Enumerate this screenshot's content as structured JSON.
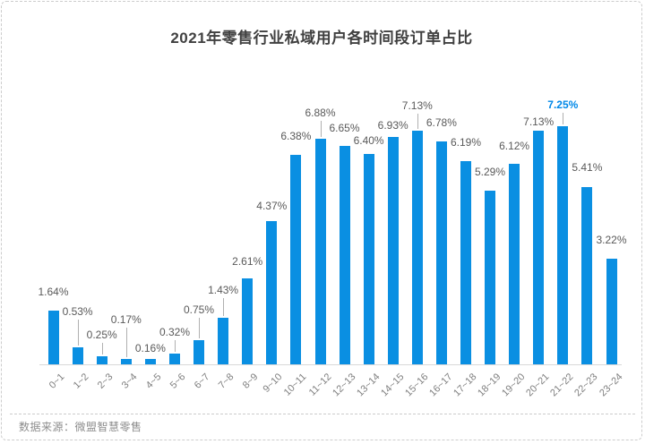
{
  "title": "2021年零售行业私域用户各时间段订单占比",
  "source": "数据来源：微盟智慧零售",
  "colors": {
    "bar": "#0a8fe2",
    "value_label": "#595959",
    "highlight_label": "#0088e8",
    "axis": "#d9d9d9",
    "tick_label": "#7f7f7f",
    "leader": "#b0b0b0"
  },
  "chart_data": {
    "type": "bar",
    "title": "2021年零售行业私域用户各时间段订单占比",
    "categories": [
      "0~1",
      "1~2",
      "2~3",
      "3~4",
      "4~5",
      "5~6",
      "6~7",
      "7~8",
      "8~9",
      "9~10",
      "10~11",
      "11~12",
      "12~13",
      "13~14",
      "14~15",
      "15~16",
      "16~17",
      "17~18",
      "18~19",
      "19~20",
      "20~21",
      "21~22",
      "22~23",
      "23~24"
    ],
    "values": [
      1.64,
      0.53,
      0.25,
      0.17,
      0.16,
      0.32,
      0.75,
      1.43,
      2.61,
      4.37,
      6.38,
      6.88,
      6.65,
      6.4,
      6.93,
      7.13,
      6.78,
      6.19,
      5.29,
      6.12,
      7.13,
      7.25,
      5.41,
      3.22
    ],
    "value_labels": [
      "1.64%",
      "0.53%",
      "0.25%",
      "0.17%",
      "0.16%",
      "0.32%",
      "0.75%",
      "1.43%",
      "2.61%",
      "4.37%",
      "6.38%",
      "6.88%",
      "6.65%",
      "6.40%",
      "6.93%",
      "7.13%",
      "6.78%",
      "6.19%",
      "5.29%",
      "6.12%",
      "7.13%",
      "7.25%",
      "5.41%",
      "3.22%"
    ],
    "highlight_index": 21,
    "xlabel": "",
    "ylabel": "",
    "ylim": [
      0,
      7.5
    ],
    "grid": false,
    "legend": false,
    "label_gaps": [
      14,
      33,
      17,
      37,
      5,
      17,
      27,
      24,
      12,
      10,
      14,
      22,
      13,
      8,
      6,
      21,
      14,
      14,
      14,
      13,
      3,
      17,
      15,
      14
    ],
    "leader_line_indices": [
      1,
      2,
      3,
      5,
      6,
      7,
      11,
      15,
      21
    ]
  }
}
